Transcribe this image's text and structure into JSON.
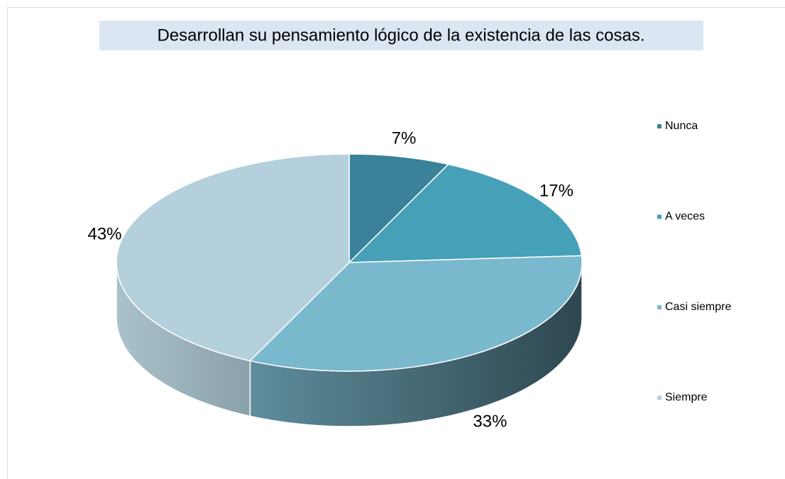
{
  "chart_data": {
    "type": "pie",
    "title": "Desarrollan su pensamiento lógico de la existencia de las cosas.",
    "categories": [
      "Nunca",
      "A veces",
      "Casi siempre",
      "Siempre"
    ],
    "values": [
      7,
      17,
      33,
      43
    ],
    "value_labels": [
      "7%",
      "17%",
      "33%",
      "43%"
    ],
    "colors": [
      "#3a8299",
      "#45a0b8",
      "#7ab8cd",
      "#b3d0dc"
    ],
    "legend": "right"
  }
}
